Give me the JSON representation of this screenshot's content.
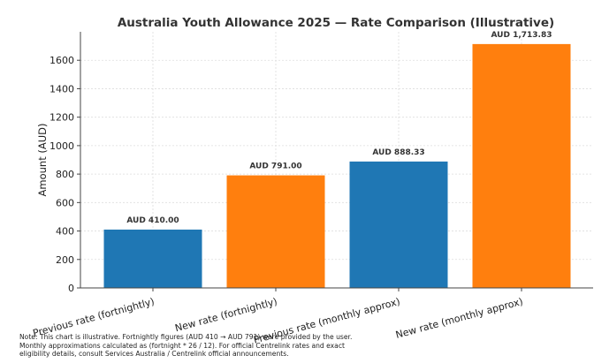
{
  "chart_data": {
    "type": "bar",
    "title": "Australia Youth Allowance 2025 — Rate Comparison (Illustrative)",
    "xlabel": "",
    "ylabel": "Amount (AUD)",
    "ylim": [
      0,
      1800
    ],
    "yticks": [
      0,
      200,
      400,
      600,
      800,
      1000,
      1200,
      1400,
      1600
    ],
    "grid": true,
    "categories": [
      "Previous rate (fortnightly)",
      "New rate (fortnightly)",
      "Previous rate (monthly approx)",
      "New rate (monthly approx)"
    ],
    "values": [
      410.0,
      791.0,
      888.33,
      1713.83
    ],
    "data_labels": [
      "AUD 410.00",
      "AUD 791.00",
      "AUD 888.33",
      "AUD 1,713.83"
    ],
    "colors": [
      "#1f77b4",
      "#ff7f0e",
      "#1f77b4",
      "#ff7f0e"
    ]
  },
  "note": {
    "line1": "Note: This chart is illustrative. Fortnightly figures (AUD 410 → AUD 791) were provided by the user.",
    "line2": "Monthly approximations calculated as (fortnight * 26 / 12). For official Centrelink rates and exact",
    "line3": "eligibility details, consult Services Australia / Centrelink official announcements."
  }
}
